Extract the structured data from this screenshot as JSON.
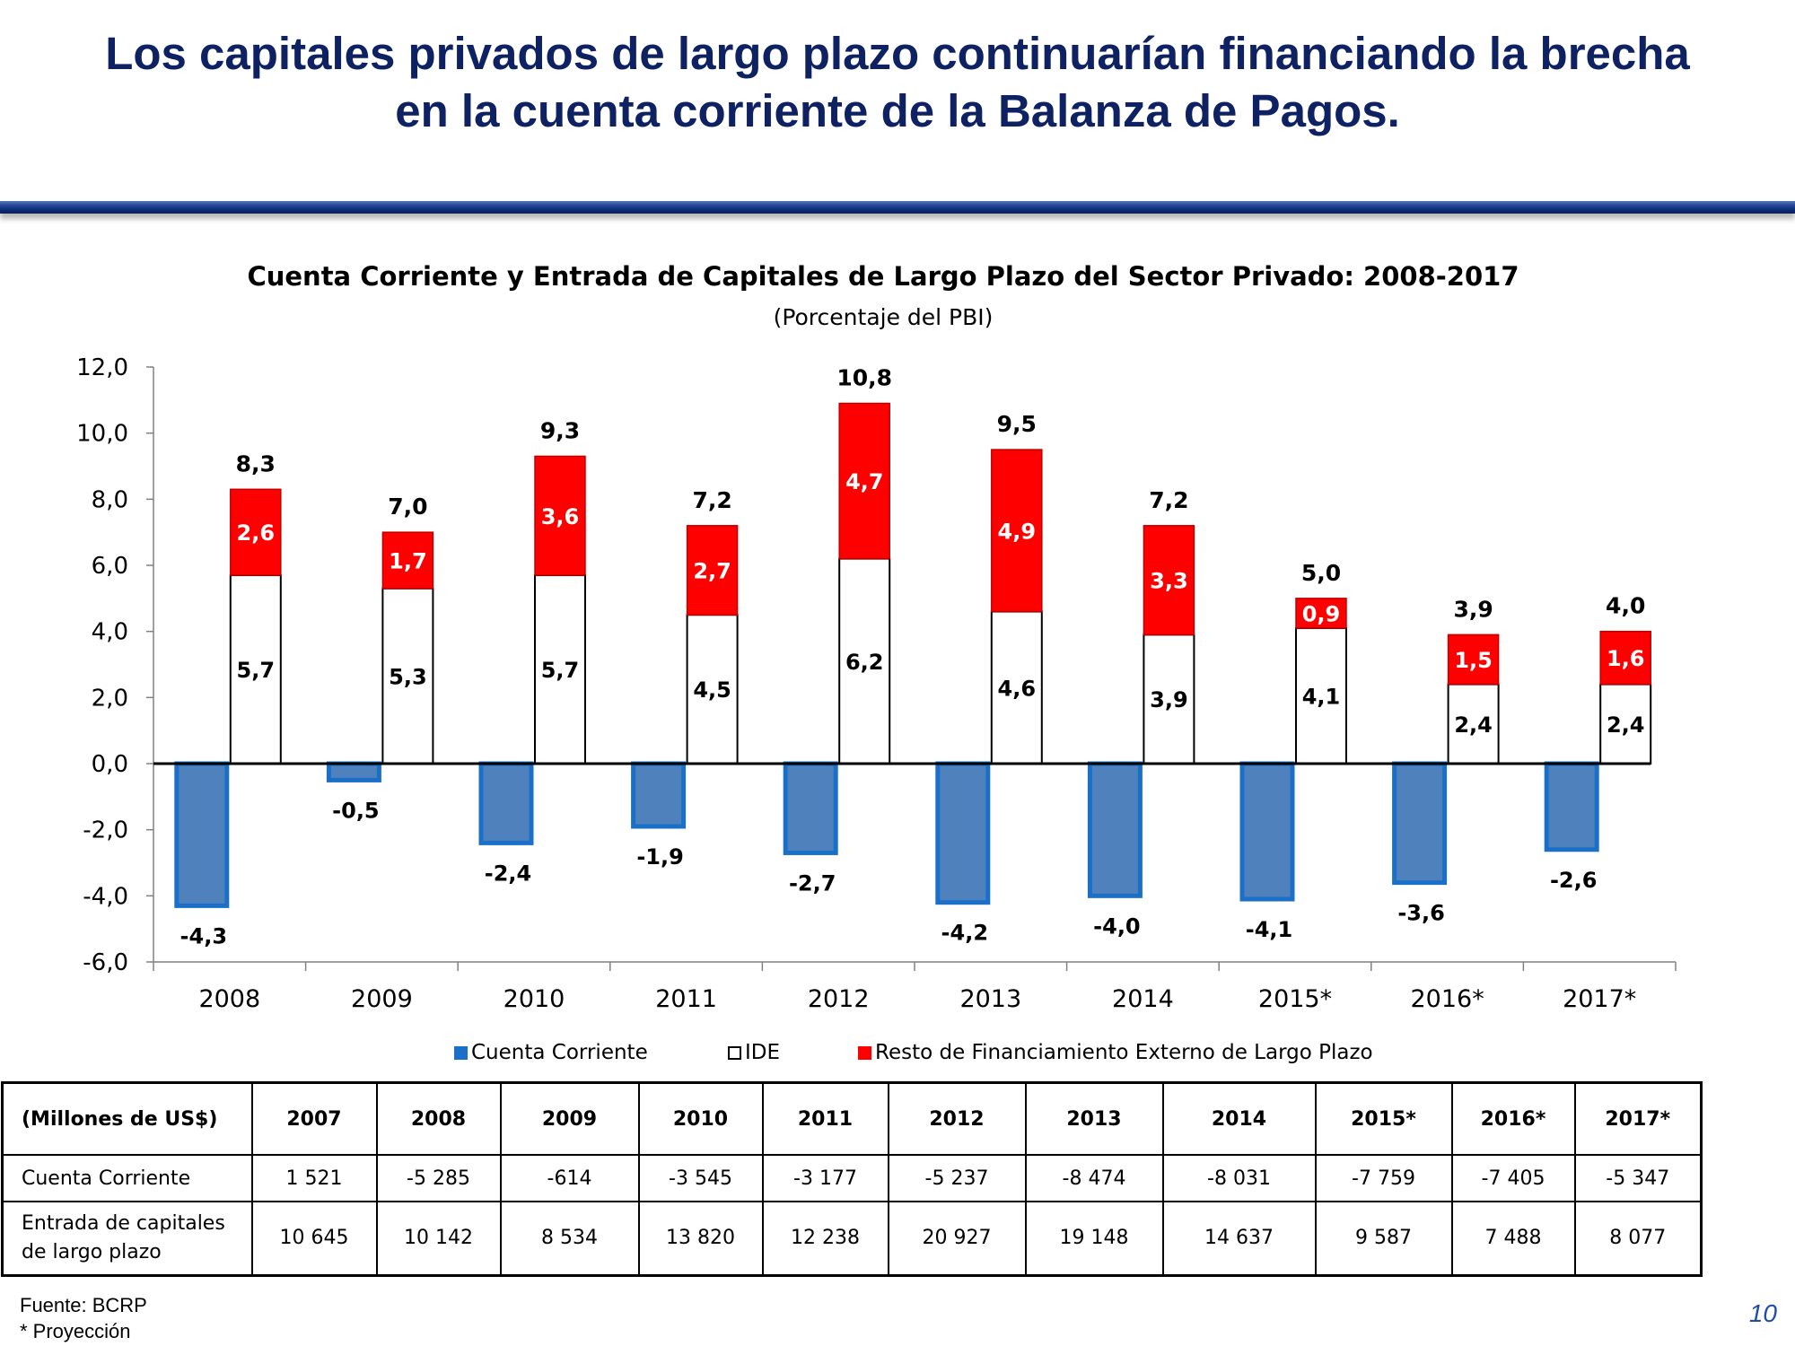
{
  "slide": {
    "title_line1": "Los capitales privados de largo plazo continuarían financiando la brecha",
    "title_line2": "en la cuenta corriente de la Balanza de Pagos.",
    "page_number": "10",
    "colors": {
      "title": "#0d2163",
      "rule": "#1a3a8a",
      "page_number": "#1f4ea8"
    }
  },
  "chart_data": {
    "type": "bar",
    "title": "Cuenta Corriente y Entrada de Capitales de Largo Plazo del Sector Privado: 2008-2017",
    "subtitle": "(Porcentaje del PBI)",
    "xlabel": "",
    "ylabel": "",
    "ylim": [
      -6,
      12
    ],
    "y_ticks": [
      "12,0",
      "10,0",
      "8,0",
      "6,0",
      "4,0",
      "2,0",
      "0,0",
      "-2,0",
      "-4,0",
      "-6,0"
    ],
    "y_tick_values": [
      12,
      10,
      8,
      6,
      4,
      2,
      0,
      -2,
      -4,
      -6
    ],
    "categories": [
      "2008",
      "2009",
      "2010",
      "2011",
      "2012",
      "2013",
      "2014",
      "2015*",
      "2016*",
      "2017*"
    ],
    "series": [
      {
        "name": "Cuenta Corriente",
        "color": "#4f81bd",
        "edge_color": "#1a70c8",
        "values": [
          -4.3,
          -0.5,
          -2.4,
          -1.9,
          -2.7,
          -4.2,
          -4.0,
          -4.1,
          -3.6,
          -2.6
        ],
        "labels": [
          "-4,3",
          "-0,5",
          "-2,4",
          "-1,9",
          "-2,7",
          "-4,2",
          "-4,0",
          "-4,1",
          "-3,6",
          "-2,6"
        ]
      },
      {
        "name": "IDE",
        "color": "#ffffff",
        "edge_color": "#000000",
        "stack": "capital",
        "values": [
          5.7,
          5.3,
          5.7,
          4.5,
          6.2,
          4.6,
          3.9,
          4.1,
          2.4,
          2.4
        ],
        "labels": [
          "5,7",
          "5,3",
          "5,7",
          "4,5",
          "6,2",
          "4,6",
          "3,9",
          "4,1",
          "2,4",
          "2,4"
        ]
      },
      {
        "name": "Resto de Financiamiento Externo de Largo Plazo",
        "color": "#ff0000",
        "edge_color": "#c00000",
        "stack": "capital",
        "values": [
          2.6,
          1.7,
          3.6,
          2.7,
          4.7,
          4.9,
          3.3,
          0.9,
          1.5,
          1.6
        ],
        "labels": [
          "2,6",
          "1,7",
          "3,6",
          "2,7",
          "4,7",
          "4,9",
          "3,3",
          "0,9",
          "1,5",
          "1,6"
        ]
      }
    ],
    "stack_totals": {
      "values": [
        8.3,
        7.0,
        9.3,
        7.2,
        10.8,
        9.5,
        7.2,
        5.0,
        3.9,
        4.0
      ],
      "labels": [
        "8,3",
        "7,0",
        "9,3",
        "7,2",
        "10,8",
        "9,5",
        "7,2",
        "5,0",
        "3,9",
        "4,0"
      ]
    },
    "legend": [
      "Cuenta Corriente",
      "IDE",
      "Resto de Financiamiento Externo de Largo Plazo"
    ],
    "legend_position": "bottom",
    "grid": false
  },
  "table": {
    "header": [
      "(Millones de US$)",
      "2007",
      "2008",
      "2009",
      "2010",
      "2011",
      "2012",
      "2013",
      "2014",
      "2015*",
      "2016*",
      "2017*"
    ],
    "rows": [
      {
        "label": "Cuenta Corriente",
        "values": [
          "1 521",
          "-5 285",
          "-614",
          "-3 545",
          "-3 177",
          "-5 237",
          "-8 474",
          "-8 031",
          "-7 759",
          "-7 405",
          "-5 347"
        ]
      },
      {
        "label_line1": "Entrada de capitales",
        "label_line2": "de largo plazo",
        "values": [
          "10 645",
          "10 142",
          "8 534",
          "13 820",
          "12 238",
          "20 927",
          "19 148",
          "14 637",
          "9 587",
          "7 488",
          "8 077"
        ]
      }
    ]
  },
  "footnote": {
    "source": "Fuente: BCRP",
    "note": "* Proyección"
  }
}
